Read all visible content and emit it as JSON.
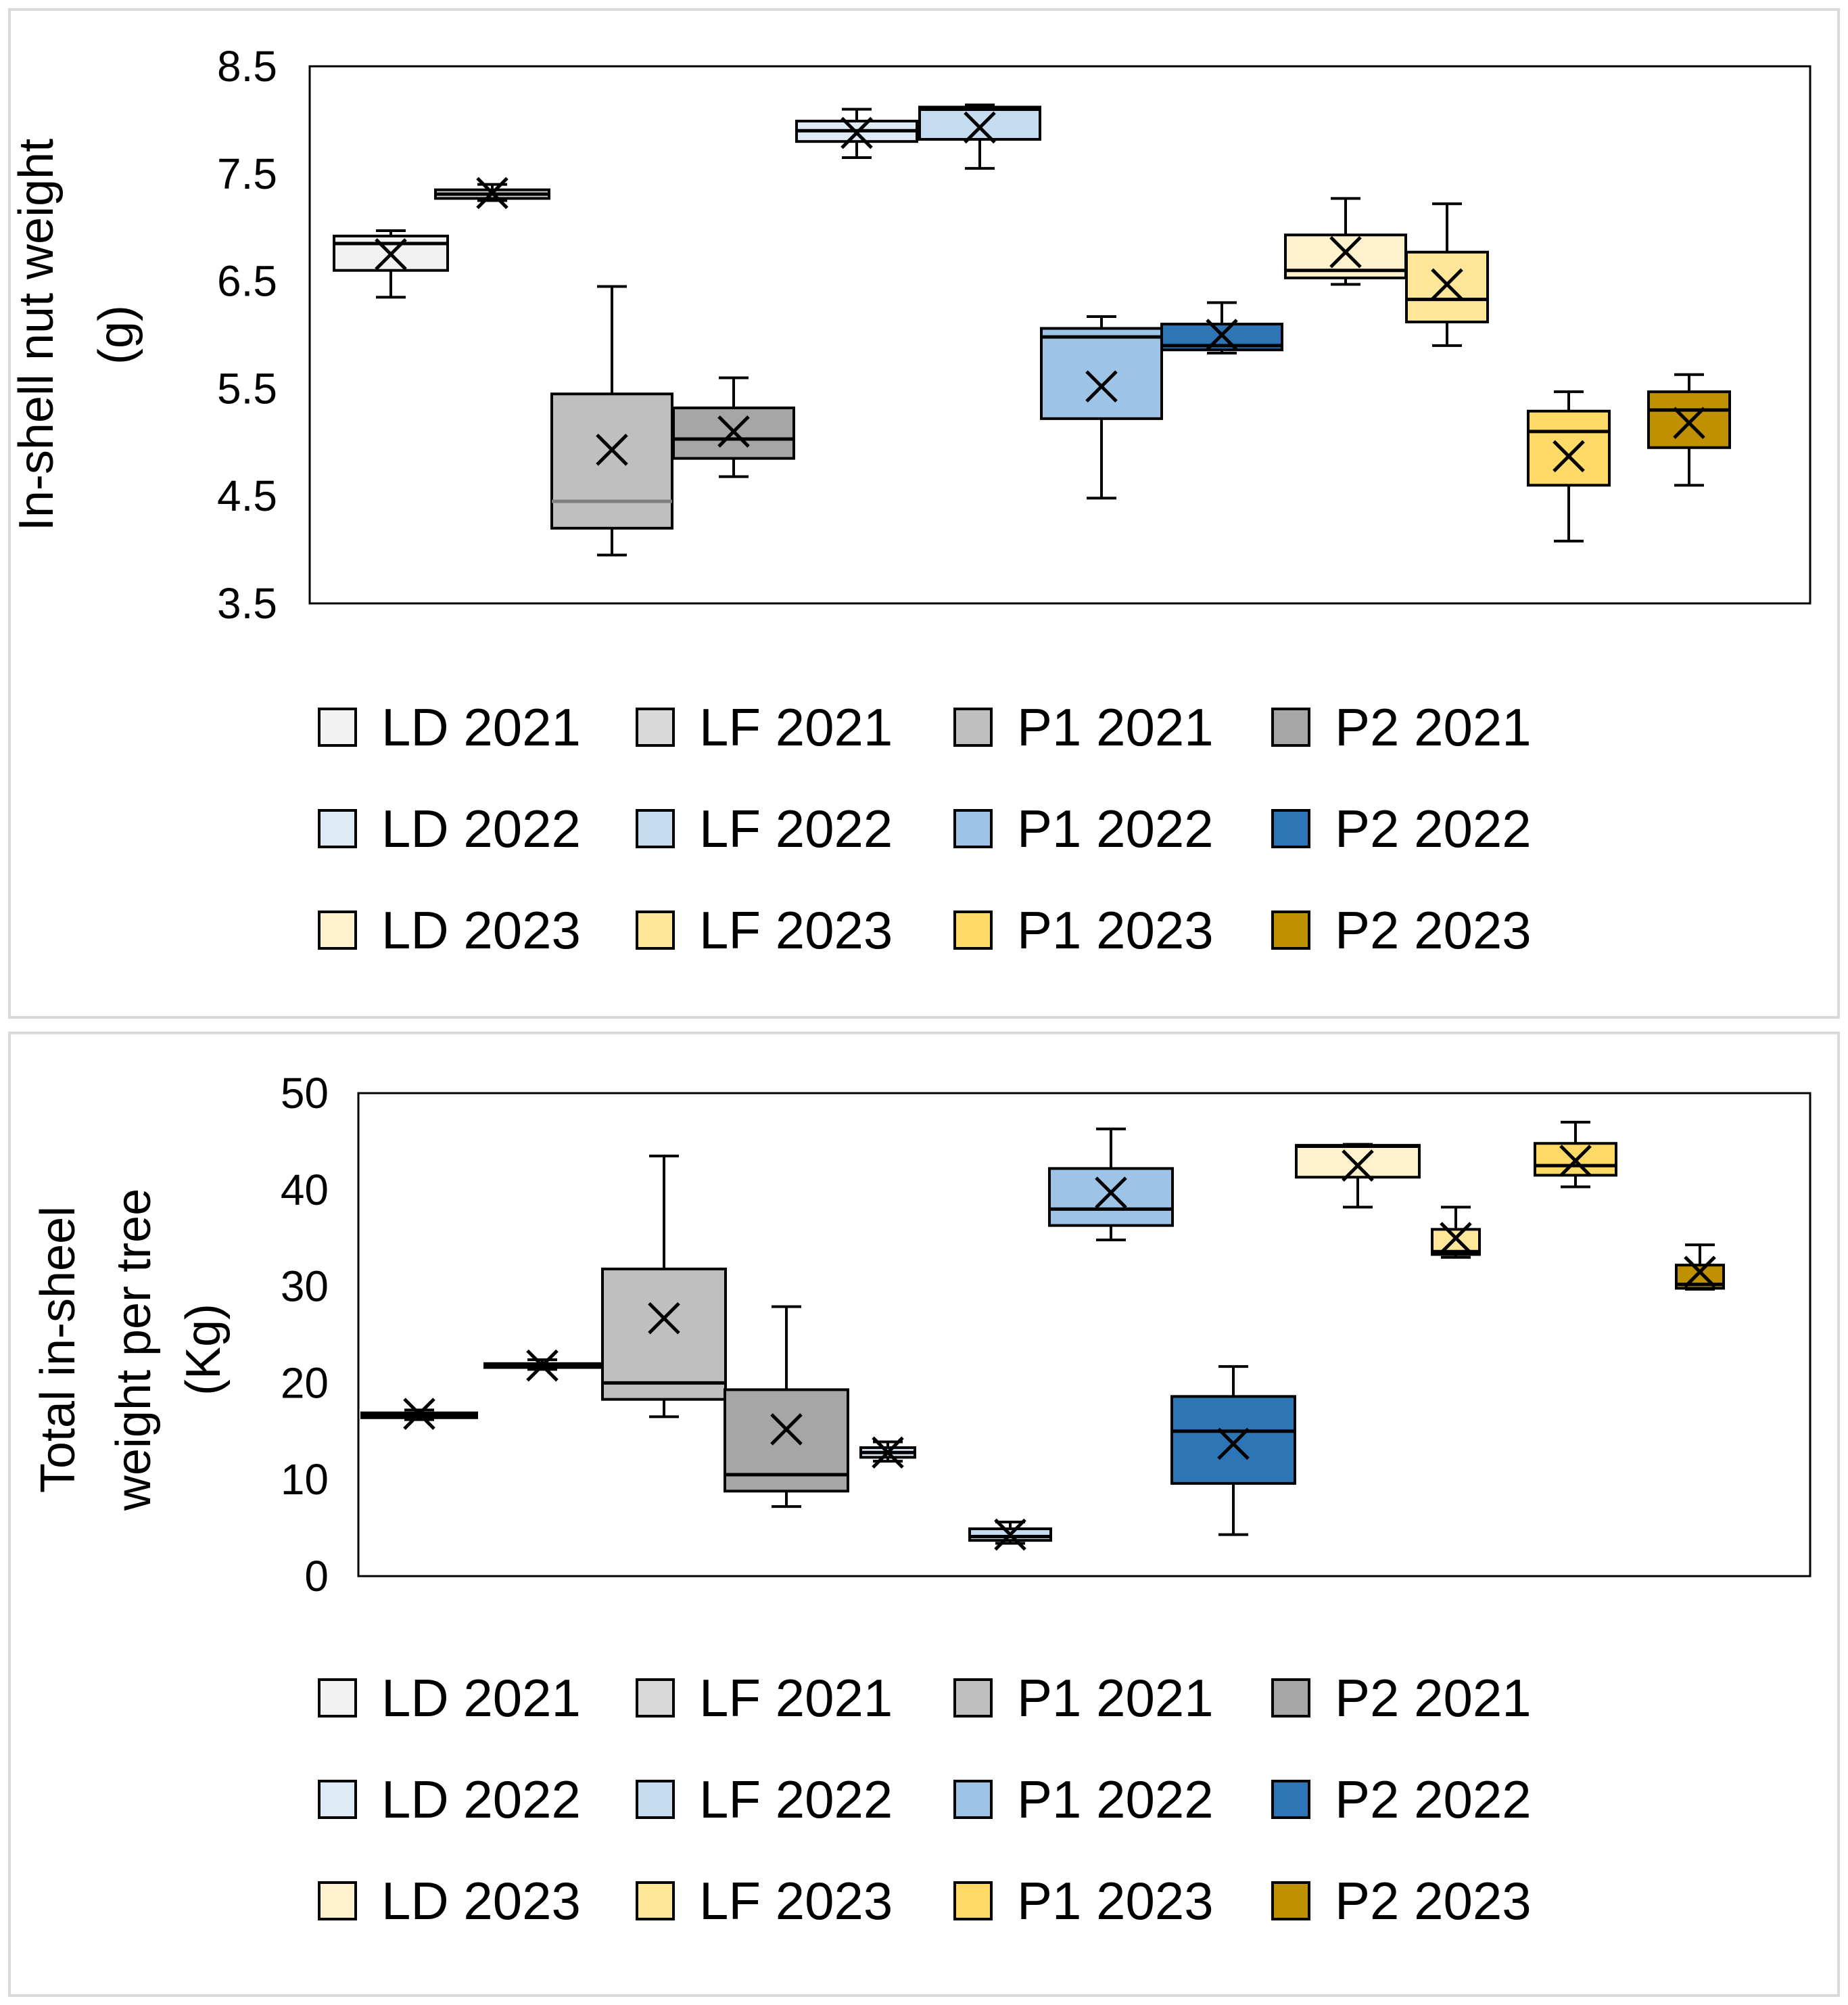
{
  "chart_data": [
    {
      "type": "box",
      "title": "",
      "ylabel_lines": [
        "In-shell nut weight",
        "(g)"
      ],
      "ylim": [
        3.5,
        8.5
      ],
      "yticks": [
        "8.5",
        "7.5",
        "6.5",
        "5.5",
        "4.5",
        "3.5"
      ],
      "ytick_values": [
        8.5,
        7.5,
        6.5,
        5.5,
        4.5,
        3.5
      ],
      "legend_rows": [
        [
          "LD 2021",
          "LF 2021",
          "P1 2021",
          "P2 2021"
        ],
        [
          "LD 2022",
          "LF 2022",
          "P1 2022",
          "P2 2022"
        ],
        [
          "LD 2023",
          "LF 2023",
          "P1 2023",
          "P2 2023"
        ]
      ],
      "series": [
        {
          "name": "LD 2021",
          "color": "#f2f2f2",
          "line": "#000000",
          "min": 6.35,
          "q1": 6.6,
          "median": 6.85,
          "q3": 6.92,
          "max": 6.97,
          "mean": 6.75
        },
        {
          "name": "LF 2021",
          "color": "#d9d9d9",
          "line": "#000000",
          "min": 7.25,
          "q1": 7.27,
          "median": 7.31,
          "q3": 7.35,
          "max": 7.4,
          "mean": 7.32
        },
        {
          "name": "P1 2021",
          "color": "#bfbfbf",
          "line": "#7f7f7f",
          "min": 3.95,
          "q1": 4.2,
          "median": 4.45,
          "q3": 5.45,
          "max": 6.45,
          "mean": 4.93
        },
        {
          "name": "P2 2021",
          "color": "#a6a6a6",
          "line": "#000000",
          "min": 4.68,
          "q1": 4.85,
          "median": 5.03,
          "q3": 5.32,
          "max": 5.6,
          "mean": 5.1
        },
        {
          "name": "LD 2022",
          "color": "#deebf7",
          "line": "#000000",
          "min": 7.65,
          "q1": 7.8,
          "median": 7.9,
          "q3": 7.99,
          "max": 8.1,
          "mean": 7.88
        },
        {
          "name": "LF 2022",
          "color": "#c5dcf0",
          "line": "#000000",
          "min": 7.55,
          "q1": 7.82,
          "median": 8.1,
          "q3": 8.12,
          "max": 8.14,
          "mean": 7.93
        },
        {
          "name": "P1 2022",
          "color": "#9dc3e6",
          "line": "#000000",
          "min": 4.48,
          "q1": 5.22,
          "median": 5.98,
          "q3": 6.06,
          "max": 6.17,
          "mean": 5.52
        },
        {
          "name": "P2 2022",
          "color": "#2e75b6",
          "line": "#000000",
          "min": 5.83,
          "q1": 5.86,
          "median": 5.9,
          "q3": 6.1,
          "max": 6.3,
          "mean": 6.0
        },
        {
          "name": "LD 2023",
          "color": "#fff2cc",
          "line": "#000000",
          "min": 6.47,
          "q1": 6.53,
          "median": 6.6,
          "q3": 6.93,
          "max": 7.27,
          "mean": 6.77
        },
        {
          "name": "LF 2023",
          "color": "#ffe699",
          "line": "#000000",
          "min": 5.9,
          "q1": 6.12,
          "median": 6.33,
          "q3": 6.77,
          "max": 7.22,
          "mean": 6.47
        },
        {
          "name": "P1 2023",
          "color": "#ffd966",
          "line": "#000000",
          "min": 4.08,
          "q1": 4.6,
          "median": 5.1,
          "q3": 5.29,
          "max": 5.47,
          "mean": 4.87
        },
        {
          "name": "P2 2023",
          "color": "#bf9000",
          "line": "#000000",
          "min": 4.6,
          "q1": 4.95,
          "median": 5.3,
          "q3": 5.47,
          "max": 5.63,
          "mean": 5.18
        }
      ]
    },
    {
      "type": "box",
      "title": "",
      "ylabel_lines": [
        "Total in-sheel",
        "weight per tree",
        "(Kg)"
      ],
      "ylim": [
        0,
        50
      ],
      "yticks": [
        "50",
        "40",
        "30",
        "20",
        "10",
        "0"
      ],
      "ytick_values": [
        50,
        40,
        30,
        20,
        10,
        0
      ],
      "legend_rows": [
        [
          "LD 2021",
          "LF 2021",
          "P1 2021",
          "P2 2021"
        ],
        [
          "LD 2022",
          "LF 2022",
          "P1 2022",
          "P2 2022"
        ],
        [
          "LD 2023",
          "LF 2023",
          "P1 2023",
          "P2 2023"
        ]
      ],
      "series": [
        {
          "name": "LD 2021",
          "color": "#f2f2f2",
          "line": "#000000",
          "min": 16.2,
          "q1": 16.4,
          "median": 16.7,
          "q3": 16.9,
          "max": 17.2,
          "mean": 16.8
        },
        {
          "name": "LF 2021",
          "color": "#d9d9d9",
          "line": "#000000",
          "min": 21.4,
          "q1": 21.6,
          "median": 21.8,
          "q3": 22.0,
          "max": 22.4,
          "mean": 21.8
        },
        {
          "name": "P1 2021",
          "color": "#bfbfbf",
          "line": "#000000",
          "min": 16.5,
          "q1": 18.3,
          "median": 20.0,
          "q3": 31.8,
          "max": 43.5,
          "mean": 26.7
        },
        {
          "name": "P2 2021",
          "color": "#a6a6a6",
          "line": "#000000",
          "min": 7.2,
          "q1": 8.8,
          "median": 10.5,
          "q3": 19.3,
          "max": 27.9,
          "mean": 15.2
        },
        {
          "name": "LD 2022",
          "color": "#deebf7",
          "line": "#000000",
          "min": 11.9,
          "q1": 12.3,
          "median": 12.8,
          "q3": 13.3,
          "max": 13.9,
          "mean": 12.8
        },
        {
          "name": "LF 2022",
          "color": "#c5dcf0",
          "line": "#000000",
          "min": 3.4,
          "q1": 3.7,
          "median": 4.1,
          "q3": 4.9,
          "max": 5.6,
          "mean": 4.3
        },
        {
          "name": "P1 2022",
          "color": "#9dc3e6",
          "line": "#000000",
          "min": 34.8,
          "q1": 36.3,
          "median": 38.0,
          "q3": 42.2,
          "max": 46.3,
          "mean": 39.7
        },
        {
          "name": "P2 2022",
          "color": "#2e75b6",
          "line": "#000000",
          "min": 4.3,
          "q1": 9.6,
          "median": 15.0,
          "q3": 18.6,
          "max": 21.7,
          "mean": 13.7
        },
        {
          "name": "LD 2023",
          "color": "#fff2cc",
          "line": "#000000",
          "min": 38.2,
          "q1": 41.3,
          "median": 44.5,
          "q3": 44.6,
          "max": 44.7,
          "mean": 42.5
        },
        {
          "name": "LF 2023",
          "color": "#ffe699",
          "line": "#000000",
          "min": 33.0,
          "q1": 33.3,
          "median": 33.6,
          "q3": 35.9,
          "max": 38.2,
          "mean": 35.0
        },
        {
          "name": "P1 2023",
          "color": "#ffd966",
          "line": "#000000",
          "min": 40.3,
          "q1": 41.5,
          "median": 42.5,
          "q3": 44.8,
          "max": 47.0,
          "mean": 43.0
        },
        {
          "name": "P2 2023",
          "color": "#bf9000",
          "line": "#000000",
          "min": 29.7,
          "q1": 29.8,
          "median": 30.2,
          "q3": 32.2,
          "max": 34.3,
          "mean": 31.5
        }
      ]
    }
  ]
}
